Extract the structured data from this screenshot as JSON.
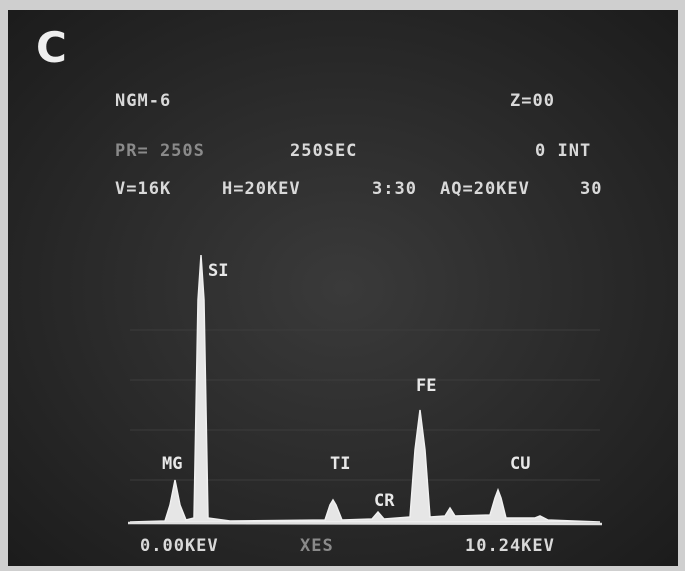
{
  "panel_label": "C",
  "header": {
    "sample": "NGM-6",
    "z": "Z=00",
    "preset": "PR=  250S",
    "time": "250SEC",
    "integral": "0 INT",
    "voltage": "V=16K",
    "horizontal": "H=20KEV",
    "time_setting": "3:30",
    "acquisition": "AQ=20KEV",
    "acquisition_value": "30"
  },
  "peaks": [
    "SI",
    "MG",
    "TI",
    "CR",
    "FE",
    "CU"
  ],
  "axis": {
    "start": "0.00KEV",
    "mode": "XES",
    "end": "10.24KEV"
  }
}
